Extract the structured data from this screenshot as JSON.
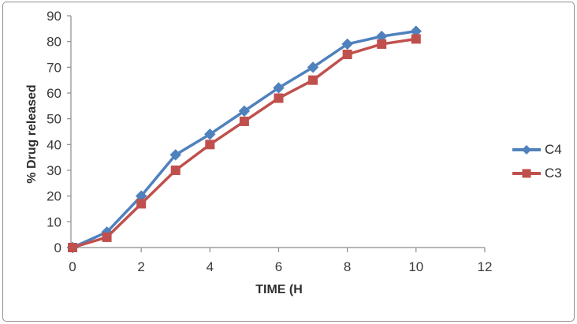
{
  "chart_data": {
    "type": "line",
    "title": "",
    "xlabel": "TIME (H",
    "ylabel": "% Drug released",
    "x": [
      0,
      1,
      2,
      3,
      4,
      5,
      6,
      7,
      8,
      9,
      10
    ],
    "series": [
      {
        "name": "C4",
        "color": "#4F81BD",
        "marker": "diamond",
        "values": [
          0,
          6,
          20,
          36,
          44,
          53,
          62,
          70,
          79,
          82,
          84
        ]
      },
      {
        "name": "C3",
        "color": "#C0504D",
        "marker": "square",
        "values": [
          0,
          4,
          17,
          30,
          40,
          49,
          58,
          65,
          75,
          79,
          81
        ]
      }
    ],
    "xlim": [
      0,
      12
    ],
    "ylim": [
      0,
      90
    ],
    "xticks": [
      0,
      2,
      4,
      6,
      8,
      10,
      12
    ],
    "yticks": [
      0,
      10,
      20,
      30,
      40,
      50,
      60,
      70,
      80,
      90
    ],
    "grid": false,
    "legend_position": "right",
    "axis_color": "#8C8C8C",
    "tick_label_color": "#3a3a3a"
  }
}
